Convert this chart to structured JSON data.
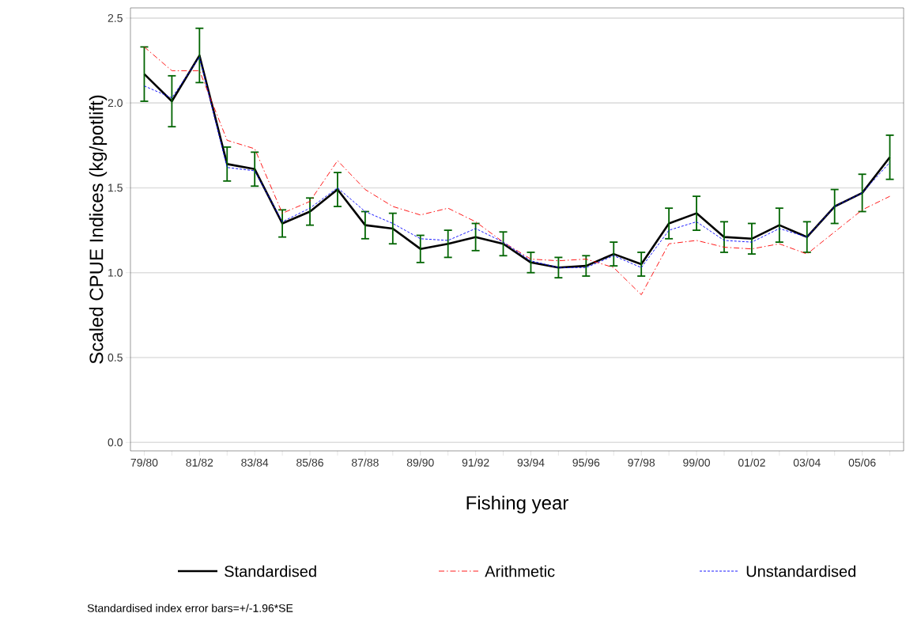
{
  "chart_data": {
    "type": "line",
    "xlabel": "Fishing year",
    "ylabel": "Scaled CPUE Indices (kg/potlift)",
    "annotations": [
      "Standardised index error bars=+/-1.96*SE"
    ],
    "categories": [
      "79/80",
      null,
      "81/82",
      null,
      "83/84",
      null,
      "85/86",
      null,
      "87/88",
      null,
      "89/90",
      null,
      "91/92",
      null,
      "93/94",
      null,
      "95/96",
      null,
      "97/98",
      null,
      "99/00",
      null,
      "01/02",
      null,
      "03/04",
      null,
      "05/06",
      null
    ],
    "series": [
      {
        "name": "Standardised",
        "color": "#000000",
        "line_style": "solid",
        "values": [
          2.17,
          2.01,
          2.28,
          1.64,
          1.61,
          1.29,
          1.36,
          1.49,
          1.28,
          1.26,
          1.14,
          1.17,
          1.21,
          1.17,
          1.06,
          1.03,
          1.04,
          1.11,
          1.05,
          1.29,
          1.35,
          1.21,
          1.2,
          1.28,
          1.21,
          1.39,
          1.47,
          1.68
        ],
        "errors": [
          0.16,
          0.15,
          0.16,
          0.1,
          0.1,
          0.08,
          0.08,
          0.1,
          0.08,
          0.09,
          0.08,
          0.08,
          0.08,
          0.07,
          0.06,
          0.06,
          0.06,
          0.07,
          0.07,
          0.09,
          0.1,
          0.09,
          0.09,
          0.1,
          0.09,
          0.1,
          0.11,
          0.13
        ]
      },
      {
        "name": "Arithmetic",
        "color": "#ff0000",
        "line_style": "dashed",
        "values": [
          2.33,
          2.19,
          2.19,
          1.78,
          1.73,
          1.35,
          1.42,
          1.66,
          1.49,
          1.39,
          1.34,
          1.38,
          1.3,
          1.18,
          1.08,
          1.07,
          1.08,
          1.03,
          0.87,
          1.17,
          1.19,
          1.15,
          1.14,
          1.17,
          1.11,
          1.24,
          1.37,
          1.45
        ]
      },
      {
        "name": "Unstandardised",
        "color": "#0000ff",
        "line_style": "dotted",
        "values": [
          2.1,
          2.03,
          2.27,
          1.62,
          1.6,
          1.3,
          1.38,
          1.5,
          1.36,
          1.29,
          1.2,
          1.19,
          1.26,
          1.18,
          1.07,
          1.03,
          1.03,
          1.1,
          1.03,
          1.25,
          1.3,
          1.19,
          1.18,
          1.26,
          1.21,
          1.39,
          1.47,
          1.65
        ]
      }
    ],
    "ylim": [
      -0.05,
      2.56
    ],
    "yticks": [
      {
        "value": 0,
        "label": "0.0"
      },
      {
        "value": 0.5,
        "label": "0.5"
      },
      {
        "value": 1,
        "label": "1.0"
      },
      {
        "value": 1.5,
        "label": "1.5"
      },
      {
        "value": 2,
        "label": "2.0"
      },
      {
        "value": 2.5,
        "label": "2.5"
      }
    ],
    "grid": "y",
    "legend": "bottom",
    "marker": "none"
  }
}
